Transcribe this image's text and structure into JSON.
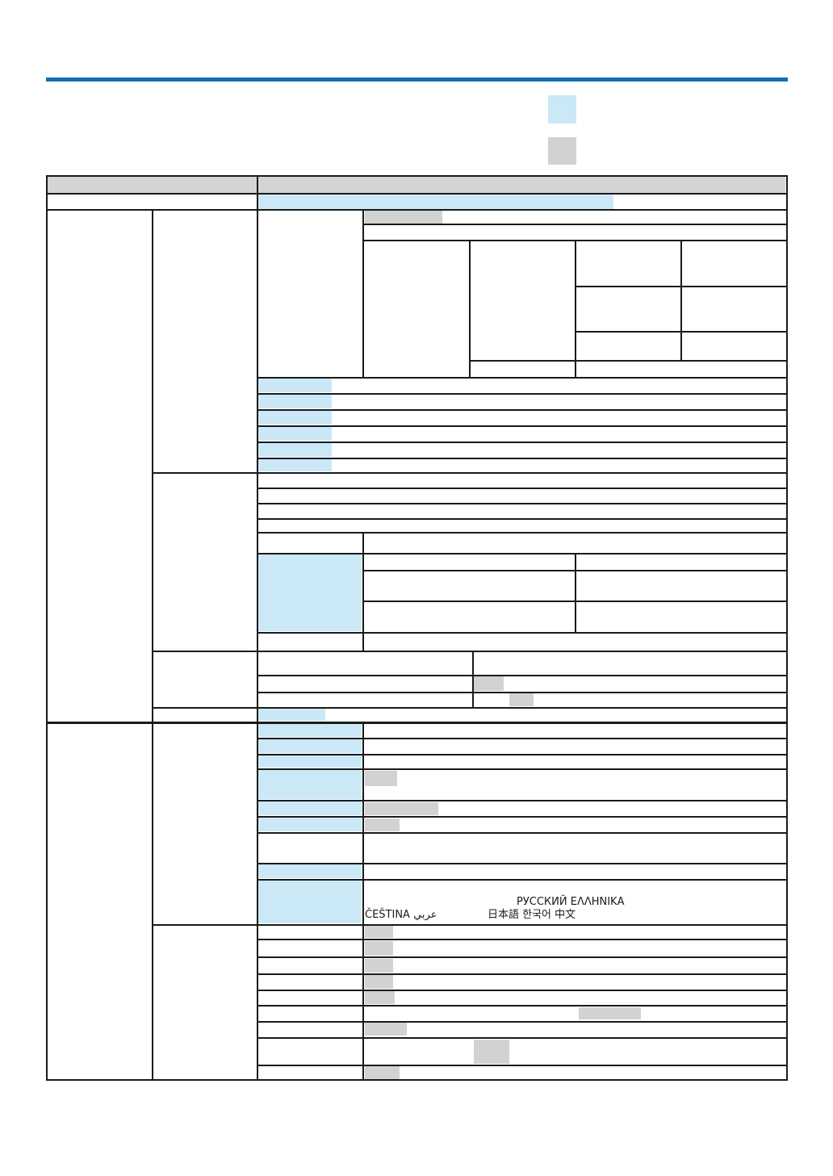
{
  "page": {
    "background": "#ffffff"
  },
  "rule": {
    "color": "#0f72b2"
  },
  "legend": {
    "highlight_swatch_color": "#cbe8f7",
    "default_swatch_color": "#d2d2d2"
  },
  "table": {
    "grid_color": "#1a1a1a",
    "header_fill": "#d4d4d4",
    "highlight_fill": "#cbe8f7",
    "swatch_fill": "#d2d2d2",
    "language_cell": {
      "line1": "РУССКИЙ ΕΛΛΗΝΙΚΑ",
      "line2_left": "ČEŠTINA عربي",
      "line2_right": "日本語 한국어 中文"
    }
  }
}
